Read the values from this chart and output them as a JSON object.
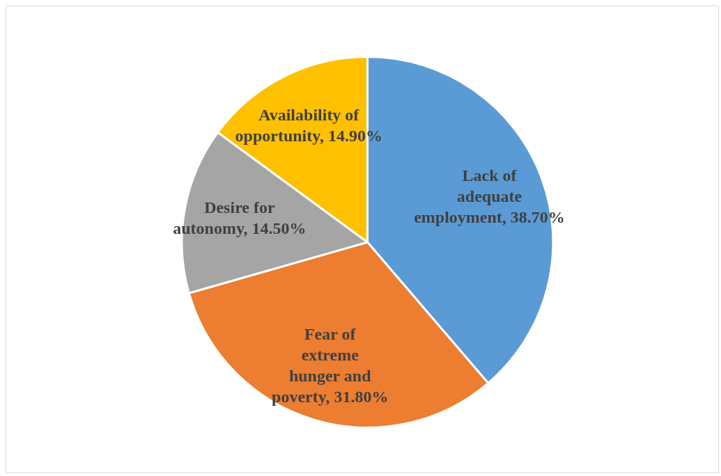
{
  "chart_data": {
    "type": "pie",
    "categories": [
      "Lack of adequate employment",
      "Fear of extreme hunger and poverty",
      "Desire for autonomy",
      "Availability of opportunity"
    ],
    "values": [
      38.7,
      31.8,
      14.5,
      14.9
    ],
    "colors": [
      "#5b9bd5",
      "#ed7d31",
      "#a5a5a5",
      "#ffc000"
    ],
    "value_labels": [
      "38.70%",
      "31.80%",
      "14.50%",
      "14.90%"
    ]
  }
}
